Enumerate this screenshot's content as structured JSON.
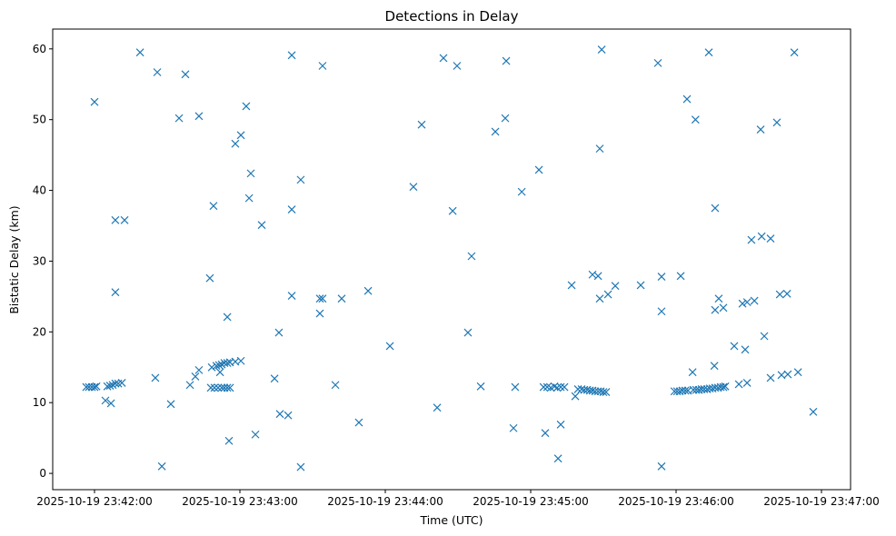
{
  "chart_data": {
    "type": "scatter",
    "title": "Detections in Delay",
    "xlabel": "Time (UTC)",
    "ylabel": "Bistatic Delay (km)",
    "x_units": "seconds after 2025-10-19 23:42:00",
    "xlim": [
      -17.25,
      312
    ],
    "ylim": [
      -2.3,
      62.8
    ],
    "xticks": [
      {
        "value": 0,
        "label": "2025-10-19 23:42:00"
      },
      {
        "value": 60,
        "label": "2025-10-19 23:43:00"
      },
      {
        "value": 120,
        "label": "2025-10-19 23:44:00"
      },
      {
        "value": 180,
        "label": "2025-10-19 23:45:00"
      },
      {
        "value": 240,
        "label": "2025-10-19 23:46:00"
      },
      {
        "value": 300,
        "label": "2025-10-19 23:47:00"
      }
    ],
    "yticks": [
      {
        "value": 0,
        "label": "0"
      },
      {
        "value": 10,
        "label": "10"
      },
      {
        "value": 20,
        "label": "20"
      },
      {
        "value": 30,
        "label": "30"
      },
      {
        "value": 40,
        "label": "40"
      },
      {
        "value": 50,
        "label": "50"
      },
      {
        "value": 60,
        "label": "60"
      }
    ],
    "marker": "x",
    "color": "#1f77b4",
    "grid": false,
    "points": [
      [
        -3.4,
        12.2
      ],
      [
        -2.3,
        12.2
      ],
      [
        -1.1,
        12.2
      ],
      [
        0,
        12.2
      ],
      [
        0.8,
        12.3
      ],
      [
        0,
        52.5
      ],
      [
        4.5,
        10.3
      ],
      [
        5.3,
        12.3
      ],
      [
        6.4,
        12.4
      ],
      [
        7.5,
        12.5
      ],
      [
        8.6,
        12.7
      ],
      [
        9.8,
        12.7
      ],
      [
        11.3,
        12.8
      ],
      [
        6.8,
        9.9
      ],
      [
        8.6,
        35.8
      ],
      [
        12.4,
        35.8
      ],
      [
        8.6,
        25.6
      ],
      [
        18.8,
        59.5
      ],
      [
        25.1,
        13.5
      ],
      [
        25.9,
        56.7
      ],
      [
        27.8,
        1.0
      ],
      [
        31.5,
        9.8
      ],
      [
        34.9,
        50.2
      ],
      [
        37.5,
        56.4
      ],
      [
        39.4,
        12.5
      ],
      [
        41.6,
        13.7
      ],
      [
        43.1,
        14.6
      ],
      [
        43.1,
        50.5
      ],
      [
        47.6,
        27.6
      ],
      [
        48.4,
        15.0
      ],
      [
        49.1,
        37.8
      ],
      [
        48.0,
        12.1
      ],
      [
        49.5,
        12.1
      ],
      [
        50.3,
        15.2
      ],
      [
        51.4,
        15.3
      ],
      [
        52.5,
        15.4
      ],
      [
        53.6,
        15.6
      ],
      [
        54.8,
        15.6
      ],
      [
        55.9,
        15.7
      ],
      [
        51.8,
        14.3
      ],
      [
        51.0,
        12.1
      ],
      [
        52.5,
        12.1
      ],
      [
        53.6,
        12.1
      ],
      [
        54.8,
        12.1
      ],
      [
        55.9,
        12.1
      ],
      [
        54.8,
        22.1
      ],
      [
        55.5,
        4.6
      ],
      [
        58.1,
        46.6
      ],
      [
        58.1,
        15.8
      ],
      [
        60.4,
        15.9
      ],
      [
        60.4,
        47.8
      ],
      [
        62.6,
        51.9
      ],
      [
        63.8,
        38.9
      ],
      [
        64.5,
        42.4
      ],
      [
        66.4,
        5.5
      ],
      [
        69.0,
        35.1
      ],
      [
        74.3,
        13.4
      ],
      [
        76.1,
        19.9
      ],
      [
        76.5,
        8.4
      ],
      [
        79.9,
        8.2
      ],
      [
        81.4,
        59.1
      ],
      [
        81.4,
        37.3
      ],
      [
        81.4,
        25.1
      ],
      [
        85.1,
        0.9
      ],
      [
        85.1,
        41.5
      ],
      [
        93.0,
        24.7
      ],
      [
        94.1,
        24.7
      ],
      [
        93.0,
        22.6
      ],
      [
        94.1,
        57.6
      ],
      [
        99.4,
        12.5
      ],
      [
        102.0,
        24.7
      ],
      [
        109.1,
        7.2
      ],
      [
        112.9,
        25.8
      ],
      [
        121.9,
        18.0
      ],
      [
        131.6,
        40.5
      ],
      [
        135.0,
        49.3
      ],
      [
        141.4,
        9.3
      ],
      [
        144.0,
        58.7
      ],
      [
        147.8,
        37.1
      ],
      [
        149.6,
        57.6
      ],
      [
        154.1,
        19.9
      ],
      [
        155.6,
        30.7
      ],
      [
        159.4,
        12.3
      ],
      [
        165.4,
        48.3
      ],
      [
        169.5,
        50.2
      ],
      [
        169.9,
        58.3
      ],
      [
        172.9,
        6.4
      ],
      [
        173.6,
        12.2
      ],
      [
        176.3,
        39.8
      ],
      [
        183.4,
        42.9
      ],
      [
        185.3,
        12.2
      ],
      [
        186.8,
        12.2
      ],
      [
        188.3,
        12.1
      ],
      [
        186.0,
        5.7
      ],
      [
        189.8,
        12.3
      ],
      [
        190.9,
        12.1
      ],
      [
        192.4,
        12.2
      ],
      [
        193.9,
        12.2
      ],
      [
        191.3,
        2.1
      ],
      [
        192.4,
        6.9
      ],
      [
        196.9,
        26.6
      ],
      [
        198.4,
        10.9
      ],
      [
        199.5,
        11.9
      ],
      [
        201.0,
        11.9
      ],
      [
        202.1,
        11.8
      ],
      [
        203.3,
        11.8
      ],
      [
        204.4,
        11.7
      ],
      [
        205.5,
        11.7
      ],
      [
        206.6,
        11.6
      ],
      [
        207.8,
        11.6
      ],
      [
        208.9,
        11.6
      ],
      [
        210.0,
        11.5
      ],
      [
        211.1,
        11.5
      ],
      [
        205.5,
        28.1
      ],
      [
        207.8,
        27.9
      ],
      [
        208.5,
        24.7
      ],
      [
        208.5,
        45.9
      ],
      [
        209.3,
        59.9
      ],
      [
        211.9,
        25.3
      ],
      [
        214.9,
        26.5
      ],
      [
        225.4,
        26.6
      ],
      [
        232.5,
        58.0
      ],
      [
        234.0,
        27.8
      ],
      [
        234.0,
        22.9
      ],
      [
        234.0,
        1.0
      ],
      [
        239.3,
        11.6
      ],
      [
        240.4,
        11.6
      ],
      [
        241.5,
        11.6
      ],
      [
        242.6,
        11.7
      ],
      [
        243.8,
        11.7
      ],
      [
        244.9,
        11.7
      ],
      [
        247.1,
        11.8
      ],
      [
        248.3,
        11.8
      ],
      [
        249.4,
        11.8
      ],
      [
        250.5,
        11.9
      ],
      [
        251.6,
        11.9
      ],
      [
        252.8,
        11.9
      ],
      [
        253.9,
        12.0
      ],
      [
        255.0,
        12.0
      ],
      [
        256.1,
        12.1
      ],
      [
        257.3,
        12.1
      ],
      [
        258.4,
        12.2
      ],
      [
        259.5,
        12.2
      ],
      [
        260.3,
        12.3
      ],
      [
        241.9,
        27.9
      ],
      [
        244.5,
        52.9
      ],
      [
        246.8,
        14.3
      ],
      [
        248.0,
        50.0
      ],
      [
        253.5,
        59.5
      ],
      [
        255.8,
        15.2
      ],
      [
        256.1,
        37.5
      ],
      [
        256.1,
        23.1
      ],
      [
        257.6,
        24.7
      ],
      [
        259.5,
        23.4
      ],
      [
        264.0,
        18.0
      ],
      [
        265.9,
        12.6
      ],
      [
        267.4,
        24.0
      ],
      [
        269.3,
        24.2
      ],
      [
        272.3,
        24.4
      ],
      [
        268.5,
        17.5
      ],
      [
        269.3,
        12.8
      ],
      [
        271.1,
        33.0
      ],
      [
        274.9,
        48.6
      ],
      [
        275.3,
        33.5
      ],
      [
        276.4,
        19.4
      ],
      [
        279.0,
        33.2
      ],
      [
        279.0,
        13.5
      ],
      [
        281.6,
        49.6
      ],
      [
        282.8,
        25.3
      ],
      [
        283.5,
        13.9
      ],
      [
        285.8,
        25.4
      ],
      [
        286.1,
        14.0
      ],
      [
        288.8,
        59.5
      ],
      [
        290.3,
        14.3
      ],
      [
        296.6,
        8.7
      ]
    ]
  }
}
